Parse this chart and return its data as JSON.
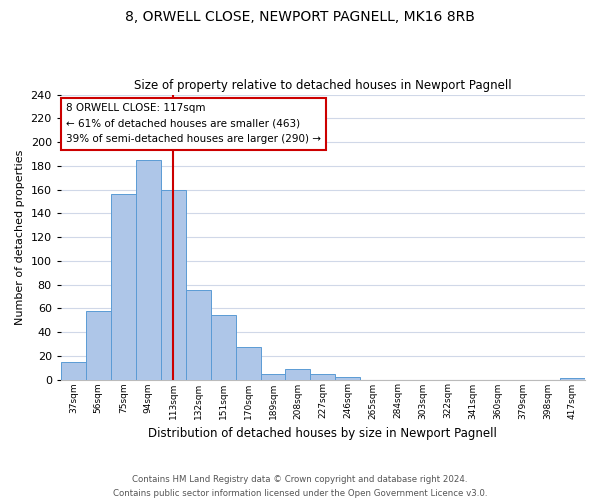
{
  "title": "8, ORWELL CLOSE, NEWPORT PAGNELL, MK16 8RB",
  "subtitle": "Size of property relative to detached houses in Newport Pagnell",
  "xlabel": "Distribution of detached houses by size in Newport Pagnell",
  "ylabel": "Number of detached properties",
  "bar_values": [
    15,
    58,
    156,
    185,
    160,
    75,
    54,
    27,
    5,
    9,
    5,
    2,
    0,
    0,
    0,
    0,
    0,
    0,
    0,
    0,
    1
  ],
  "bar_labels": [
    "37sqm",
    "56sqm",
    "75sqm",
    "94sqm",
    "113sqm",
    "132sqm",
    "151sqm",
    "170sqm",
    "189sqm",
    "208sqm",
    "227sqm",
    "246sqm",
    "265sqm",
    "284sqm",
    "303sqm",
    "322sqm",
    "341sqm",
    "360sqm",
    "379sqm",
    "398sqm",
    "417sqm"
  ],
  "bar_color": "#aec6e8",
  "bar_edge_color": "#5b9bd5",
  "vline_color": "#cc0000",
  "vline_pos": 4.5,
  "annotation_box_text": "8 ORWELL CLOSE: 117sqm\n← 61% of detached houses are smaller (463)\n39% of semi-detached houses are larger (290) →",
  "ylim": [
    0,
    240
  ],
  "yticks": [
    0,
    20,
    40,
    60,
    80,
    100,
    120,
    140,
    160,
    180,
    200,
    220,
    240
  ],
  "footer_line1": "Contains HM Land Registry data © Crown copyright and database right 2024.",
  "footer_line2": "Contains public sector information licensed under the Open Government Licence v3.0.",
  "background_color": "#ffffff",
  "grid_color": "#d0d8e8"
}
